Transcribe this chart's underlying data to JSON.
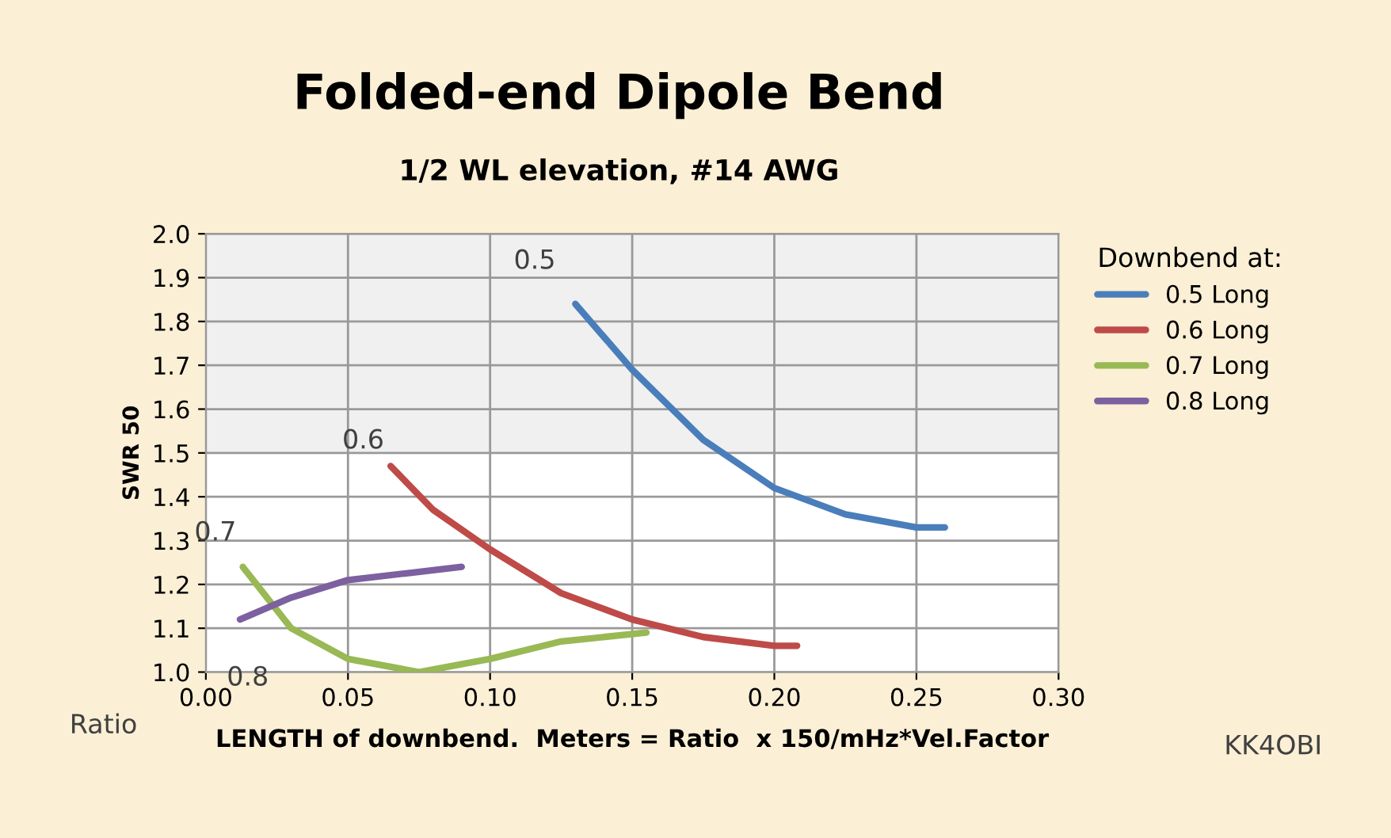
{
  "chart_data": {
    "type": "line",
    "title": "Folded-end Dipole Bend",
    "subtitle": "1/2 WL elevation, #14 AWG",
    "xlabel": "LENGTH of downbend.  Meters = Ratio  x 150/mHz*Vel.Factor",
    "ylabel": "SWR 50",
    "legend_title": "Downbend at:",
    "legend": "right",
    "grid": true,
    "marker": "none",
    "line_style": "solid",
    "xlim": [
      0,
      0.3
    ],
    "xticks": [
      {
        "value": 0,
        "label": "0.00"
      },
      {
        "value": 0.05,
        "label": "0.05"
      },
      {
        "value": 0.1,
        "label": "0.10"
      },
      {
        "value": 0.15,
        "label": "0.15"
      },
      {
        "value": 0.2,
        "label": "0.20"
      },
      {
        "value": 0.25,
        "label": "0.25"
      },
      {
        "value": 0.3,
        "label": "0.30"
      }
    ],
    "ylim": [
      1.0,
      2.0
    ],
    "yticks": [
      {
        "value": 1.0,
        "label": "1.0"
      },
      1.1,
      1.2,
      1.3,
      1.4,
      1.5,
      1.6,
      1.7,
      1.8,
      1.9,
      {
        "value": 2.0,
        "label": "2.0"
      }
    ],
    "bands": [
      {
        "axis": "y",
        "from": 1.5,
        "to": 2.0,
        "color": "#f0f0f0"
      }
    ],
    "series": [
      {
        "name": "0.5 Long",
        "color": "#4a7ebb",
        "x": [
          0.13,
          0.15,
          0.175,
          0.2,
          0.225,
          0.25,
          0.26
        ],
        "values": [
          1.84,
          1.69,
          1.53,
          1.42,
          1.36,
          1.33,
          1.33
        ]
      },
      {
        "name": "0.6 Long",
        "color": "#be4b48",
        "x": [
          0.065,
          0.08,
          0.1,
          0.125,
          0.15,
          0.175,
          0.2,
          0.208
        ],
        "values": [
          1.47,
          1.37,
          1.28,
          1.18,
          1.12,
          1.08,
          1.06,
          1.06
        ]
      },
      {
        "name": "0.7 Long",
        "color": "#98b954",
        "x": [
          0.013,
          0.03,
          0.05,
          0.075,
          0.1,
          0.125,
          0.155
        ],
        "values": [
          1.24,
          1.1,
          1.03,
          1.0,
          1.03,
          1.07,
          1.09
        ]
      },
      {
        "name": "0.8 Long",
        "color": "#7d60a0",
        "x": [
          0.012,
          0.03,
          0.05,
          0.07,
          0.09
        ],
        "values": [
          1.12,
          1.17,
          1.21,
          1.225,
          1.24
        ]
      }
    ],
    "annotations": [
      {
        "text": "0.5",
        "x": 0.13,
        "y": 1.84
      },
      {
        "text": "0.6",
        "x": 0.065,
        "y": 1.47
      },
      {
        "text": "0.7",
        "x": 0.013,
        "y": 1.24
      },
      {
        "text": "0.8",
        "x": 0.012,
        "y": 1.12
      },
      "Ratio",
      "KK4OBI"
    ]
  }
}
